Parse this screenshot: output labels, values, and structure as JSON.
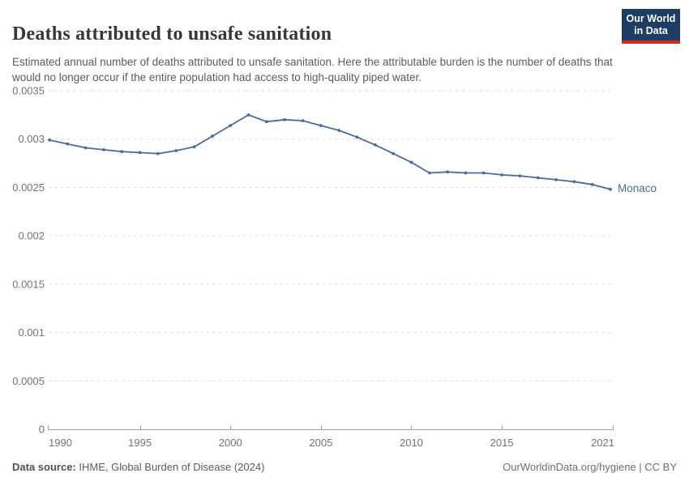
{
  "header": {
    "title": "Deaths attributed to unsafe sanitation",
    "subtitle": "Estimated annual number of deaths attributed to unsafe sanitation. Here the attributable burden is the number of deaths that would no longer occur if the entire population had access to high-quality piped water.",
    "logo": {
      "line1": "Our World",
      "line2": "in Data"
    }
  },
  "chart_data": {
    "type": "line",
    "title": "Deaths attributed to unsafe sanitation",
    "entity": "Monaco",
    "x": [
      1990,
      1991,
      1992,
      1993,
      1994,
      1995,
      1996,
      1997,
      1998,
      1999,
      2000,
      2001,
      2002,
      2003,
      2004,
      2005,
      2006,
      2007,
      2008,
      2009,
      2010,
      2011,
      2012,
      2013,
      2014,
      2015,
      2016,
      2017,
      2018,
      2019,
      2020,
      2021
    ],
    "series": [
      {
        "name": "Monaco",
        "values": [
          0.00299,
          0.00295,
          0.00291,
          0.00289,
          0.00287,
          0.00286,
          0.00285,
          0.00288,
          0.00292,
          0.00303,
          0.00314,
          0.00325,
          0.00318,
          0.0032,
          0.00319,
          0.00314,
          0.00309,
          0.00302,
          0.00294,
          0.00285,
          0.00276,
          0.00265,
          0.00266,
          0.00265,
          0.00265,
          0.00263,
          0.00262,
          0.0026,
          0.00258,
          0.00256,
          0.00253,
          0.00248
        ]
      }
    ],
    "xlabel": "",
    "ylabel": "",
    "xlim": [
      1990,
      2021
    ],
    "ylim": [
      0,
      0.0035
    ],
    "grid": true,
    "legend_position": "end-of-line-label",
    "y_ticks": [
      "0",
      "0.0005",
      "0.001",
      "0.0015",
      "0.002",
      "0.0025",
      "0.003",
      "0.0035"
    ],
    "y_tick_values": [
      0,
      0.0005,
      0.001,
      0.0015,
      0.002,
      0.0025,
      0.003,
      0.0035
    ],
    "x_ticks": [
      "1990",
      "1995",
      "2000",
      "2005",
      "2010",
      "2015",
      "2021"
    ],
    "x_tick_values": [
      1990,
      1995,
      2000,
      2005,
      2010,
      2015,
      2021
    ],
    "line_color": "#4c6a9c"
  },
  "footer": {
    "source_label": "Data source:",
    "source_text": " IHME, Global Burden of Disease (2024)",
    "attribution": "OurWorldinData.org/hygiene | CC BY"
  },
  "colors": {
    "line": "#4c6a9c",
    "title_text": "#383636",
    "subtitle_text": "#5b5b5b",
    "tick_text": "#737373",
    "gridline": "#dcdcdc",
    "logo_bg": "#1d3d63",
    "logo_stripe": "#d42b21"
  }
}
